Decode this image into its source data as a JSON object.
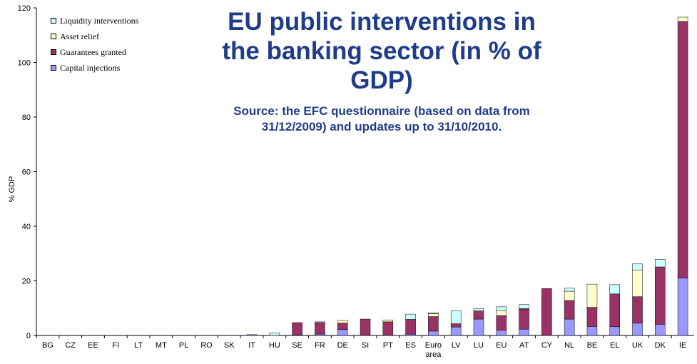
{
  "colors": {
    "liquidity": "#ccffff",
    "asset_relief": "#ffffcc",
    "guarantees": "#993366",
    "capital": "#9999ff",
    "title": "#1f3c88"
  },
  "chart_data": {
    "type": "bar",
    "stacked": true,
    "title": "EU public interventions in the banking sector (in % of GDP)",
    "subtitle": "Source: the EFC questionnaire (based on data from 31/12/2009) and updates up to 31/10/2010.",
    "ylabel": "% GDP",
    "ylim": [
      0,
      120
    ],
    "yticks": [
      0,
      20,
      40,
      60,
      80,
      100,
      120
    ],
    "grid": false,
    "legend_position": "top-left",
    "categories": [
      "BG",
      "CZ",
      "EE",
      "FI",
      "LT",
      "MT",
      "PL",
      "RO",
      "SK",
      "IT",
      "HU",
      "SE",
      "FR",
      "DE",
      "SI",
      "PT",
      "ES",
      "Euro area",
      "LV",
      "LU",
      "EU",
      "AT",
      "CY",
      "NL",
      "BE",
      "EL",
      "UK",
      "DK",
      "IE"
    ],
    "series": [
      {
        "name": "Capital injections",
        "values": [
          0,
          0,
          0,
          0,
          0,
          0,
          0,
          0,
          0,
          0.3,
          0,
          0.1,
          0.5,
          2.2,
          0,
          0,
          0.5,
          1.6,
          3.1,
          6.0,
          1.9,
          2.3,
          0,
          6.0,
          3.3,
          3.2,
          4.5,
          4.1,
          21.0
        ]
      },
      {
        "name": "Guarantees granted",
        "values": [
          0,
          0,
          0,
          0,
          0,
          0,
          0,
          0,
          0,
          0,
          0,
          4.6,
          4.2,
          2.3,
          6.0,
          5.0,
          5.4,
          5.3,
          1.2,
          3.0,
          5.4,
          7.4,
          17.2,
          6.8,
          7.0,
          12.0,
          9.7,
          21.0,
          94.0
        ]
      },
      {
        "name": "Asset relief",
        "values": [
          0,
          0,
          0,
          0,
          0,
          0,
          0,
          0,
          0,
          0,
          0,
          0,
          0,
          1.0,
          0,
          0.7,
          0,
          1.1,
          0,
          0,
          1.8,
          0.1,
          0,
          3.4,
          8.5,
          0,
          9.8,
          0,
          1.6
        ]
      },
      {
        "name": "Liquidity interventions",
        "values": [
          0,
          0,
          0,
          0,
          0,
          0,
          0,
          0,
          0,
          0,
          0.9,
          0,
          0.3,
          0,
          0,
          0,
          1.9,
          0.3,
          4.7,
          0.8,
          1.4,
          1.5,
          0,
          1.1,
          0,
          3.4,
          2.2,
          2.8,
          0
        ]
      }
    ],
    "legend_order": [
      "Liquidity interventions",
      "Asset relief",
      "Guarantees granted",
      "Capital injections"
    ]
  }
}
